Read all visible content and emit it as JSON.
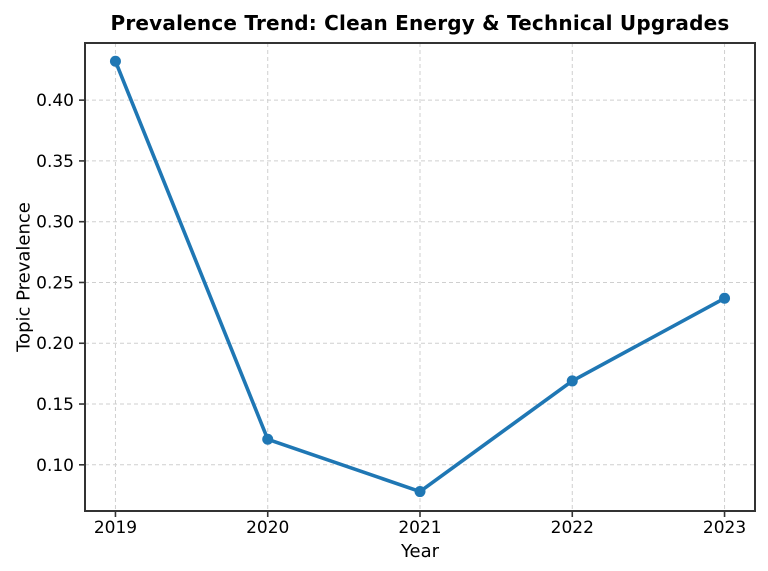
{
  "chart_data": {
    "type": "line",
    "title": "Prevalence Trend: Clean Energy & Technical Upgrades",
    "xlabel": "Year",
    "ylabel": "Topic Prevalence",
    "x": [
      2019,
      2020,
      2021,
      2022,
      2023
    ],
    "x_tick_labels": [
      "2019",
      "2020",
      "2021",
      "2022",
      "2023"
    ],
    "values": [
      0.432,
      0.121,
      0.078,
      0.169,
      0.237
    ],
    "y_ticks": [
      0.1,
      0.15,
      0.2,
      0.25,
      0.3,
      0.35,
      0.4
    ],
    "y_tick_labels": [
      "0.10",
      "0.15",
      "0.20",
      "0.25",
      "0.30",
      "0.35",
      "0.40"
    ],
    "xlim": [
      2018.8,
      2023.2
    ],
    "ylim": [
      0.062,
      0.447
    ],
    "grid": true,
    "grid_style": "dashed",
    "legend": "none",
    "marker": "circle",
    "marker_radius": 5.5,
    "colors": {
      "line": "#1f77b4",
      "grid": "#cfcfcf",
      "spine": "#333333",
      "text": "#000000",
      "background": "#ffffff"
    }
  }
}
